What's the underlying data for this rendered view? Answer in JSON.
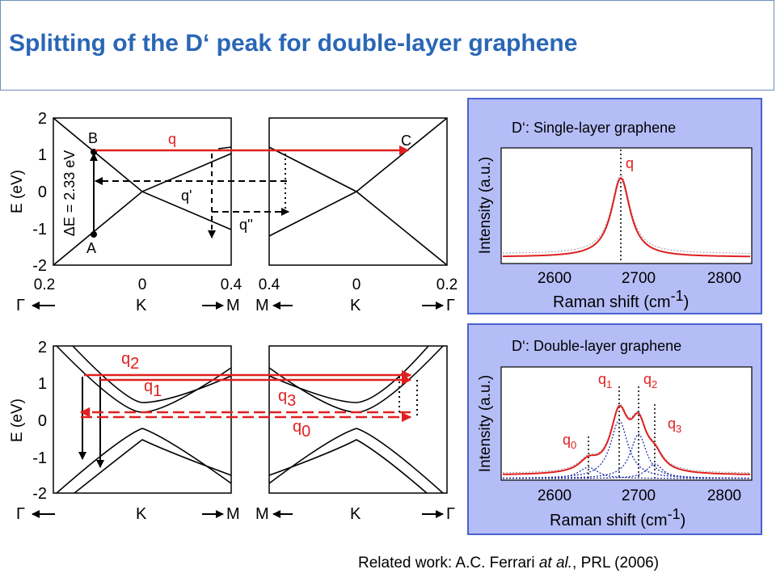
{
  "slide": {
    "title": "Splitting of the D‘ peak for double-layer graphene",
    "footer": {
      "prefix": "Related work: A.C. Ferrari ",
      "italic": "at al.",
      "suffix": ", PRL (2006)"
    }
  },
  "band_top": {
    "y_ticks": [
      "2",
      "1",
      "0",
      "-1",
      "-2"
    ],
    "y_label": "E (eV)",
    "x_ticks_left": [
      "0.2",
      "0",
      "0.4"
    ],
    "x_ticks_right": [
      "0.4",
      "0",
      "0.2"
    ],
    "k_labels_left": [
      "Γ",
      "K",
      "M"
    ],
    "k_labels_right": [
      "M",
      "K",
      "Γ"
    ],
    "points": {
      "B": "B",
      "A": "A",
      "C": "C"
    },
    "delta_e": "ΔE = 2.33 eV",
    "q_labels": [
      "q",
      "q'",
      "q''"
    ]
  },
  "band_bottom": {
    "y_ticks": [
      "2",
      "1",
      "0",
      "-1",
      "-2"
    ],
    "y_label": "E (eV)",
    "k_labels_left": [
      "Γ",
      "K",
      "M"
    ],
    "k_labels_right": [
      "M",
      "K",
      "Γ"
    ],
    "q_labels": {
      "q2": {
        "base": "q",
        "sub": "2"
      },
      "q1": {
        "base": "q",
        "sub": "1"
      },
      "q3": {
        "base": "q",
        "sub": "3"
      },
      "q0": {
        "base": "q",
        "sub": "0"
      }
    }
  },
  "raman_single": {
    "heading": "D‘: Single-layer graphene",
    "y_label": "Intensity (a.u.)",
    "x_label": "Raman shift (cm",
    "x_label_sup": "-1",
    "x_label_end": ")",
    "x_ticks": [
      "2600",
      "2700",
      "2800"
    ],
    "peak_label": "q"
  },
  "raman_double": {
    "heading": "D‘: Double-layer graphene",
    "y_label": "Intensity (a.u.)",
    "x_label": "Raman shift (cm",
    "x_label_sup": "-1",
    "x_label_end": ")",
    "x_ticks": [
      "2600",
      "2700",
      "2800"
    ],
    "peak_labels": {
      "q1": {
        "base": "q",
        "sub": "1"
      },
      "q2": {
        "base": "q",
        "sub": "2"
      },
      "q3": {
        "base": "q",
        "sub": "3"
      },
      "q0": {
        "base": "q",
        "sub": "0"
      }
    }
  },
  "colors": {
    "title": "#2a66b6",
    "arrow_red": "#e02020",
    "panel_bg": "#b4bdf6",
    "panel_border": "#4a62d0",
    "fit_blue": "#2233aa"
  }
}
